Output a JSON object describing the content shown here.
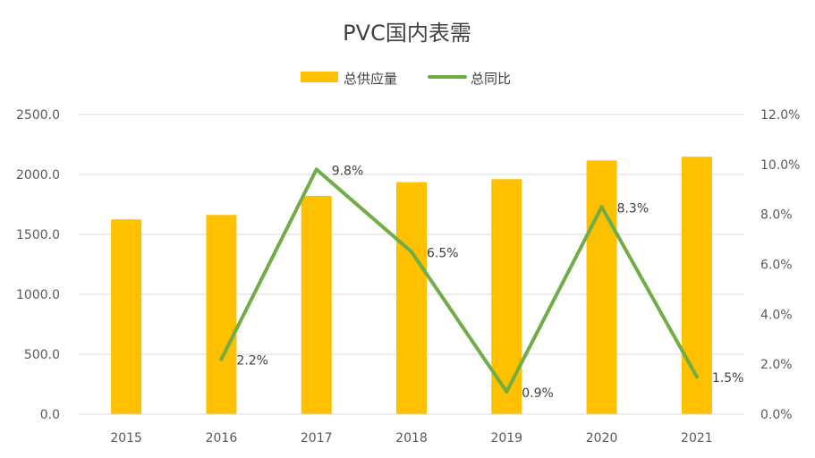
{
  "chart_data": {
    "type": "bar",
    "title": "PVC国内表需",
    "categories": [
      "2015",
      "2016",
      "2017",
      "2018",
      "2019",
      "2020",
      "2021"
    ],
    "series": [
      {
        "name": "总供应量",
        "type": "bar",
        "axis": "left",
        "color": "#FFC000",
        "values": [
          1625,
          1662,
          1821,
          1936,
          1961,
          2117,
          2148
        ]
      },
      {
        "name": "总同比",
        "type": "line",
        "axis": "right",
        "color": "#70AD47",
        "values": [
          null,
          2.2,
          9.8,
          6.5,
          0.9,
          8.3,
          1.5
        ],
        "labels": [
          "",
          "2.2%",
          "9.8%",
          "6.5%",
          "0.9%",
          "8.3%",
          "1.5%"
        ]
      }
    ],
    "y_left": {
      "min": 0,
      "max": 2500,
      "ticks": [
        "0.0",
        "500.0",
        "1000.0",
        "1500.0",
        "2000.0",
        "2500.0"
      ]
    },
    "y_right": {
      "min": 0,
      "max": 12,
      "ticks": [
        "0.0%",
        "2.0%",
        "4.0%",
        "6.0%",
        "8.0%",
        "10.0%",
        "12.0%"
      ]
    },
    "grid": true,
    "legend_position": "top-center"
  }
}
